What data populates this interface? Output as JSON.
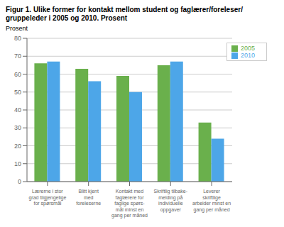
{
  "chart_data": {
    "type": "bar",
    "title": "Figur 1. Ulike former for kontakt mellom student og faglærer/foreleser/\ngruppeleder i 2005 og 2010. Prosent",
    "ylabel": "Prosent",
    "categories": [
      "Lærerne i stor\ngrad tilgjengelige\nfor spørsmål",
      "Blitt kjent\nmed\nforeleserne",
      "Kontakt med\nfaglærere for\nfaglige spørs-\nmål minst en\ngang per måned",
      "Skriftlig tilbake-\nmelding på\nindividuelle\noppgaver",
      "Leverer\nskriftlige\narbeider minst en\ngang per måned"
    ],
    "series": [
      {
        "name": "2005",
        "color": "#6ab04c",
        "values": [
          66,
          63,
          59,
          65,
          33
        ]
      },
      {
        "name": "2010",
        "color": "#4da6e8",
        "values": [
          67,
          56,
          50,
          67,
          24
        ]
      }
    ],
    "ylim": [
      0,
      80
    ],
    "yticks": [
      0,
      10,
      20,
      30,
      40,
      50,
      60,
      70,
      80
    ],
    "grid": true,
    "legend": "upper right"
  }
}
